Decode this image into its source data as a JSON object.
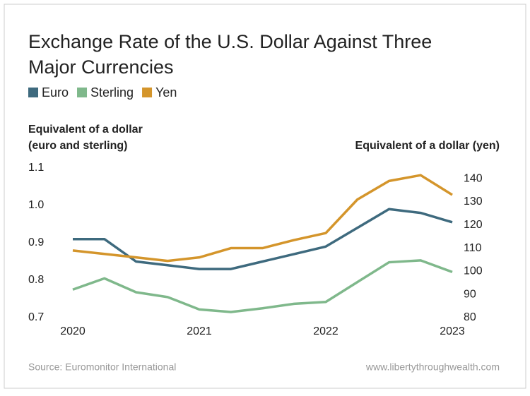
{
  "chart_data": {
    "type": "line",
    "title": [
      "Exchange Rate of the U.S. Dollar Against Three",
      "Major Currencies"
    ],
    "ylabel": [
      "Equivalent of a dollar",
      "(euro and sterling)"
    ],
    "y2label": "Equivalent of a dollar (yen)",
    "source": "Source: Euromonitor International",
    "credit": "www.libertythroughwealth.com",
    "x": [
      2020,
      2020.25,
      2020.5,
      2020.75,
      2021,
      2021.25,
      2021.5,
      2021.75,
      2022,
      2022.25,
      2022.5,
      2022.75,
      2023
    ],
    "xlim": [
      2020,
      2023
    ],
    "xticks": [
      2020,
      2021,
      2022,
      2023
    ],
    "ylim": [
      0.7,
      1.1
    ],
    "yticks": [
      0.7,
      0.8,
      0.9,
      {
        "value": 1,
        "label": "1.0"
      },
      1.1
    ],
    "y2lim": [
      80,
      144.6
    ],
    "y2ticks": [
      80,
      90,
      100,
      110,
      120,
      130,
      140
    ],
    "grid": false,
    "series": [
      {
        "name": "Euro",
        "color": "#3e6a7e",
        "values": [
          0.91,
          0.91,
          0.85,
          0.84,
          0.83,
          0.83,
          0.85,
          0.87,
          0.89,
          0.94,
          0.99,
          0.98,
          0.955
        ]
      },
      {
        "name": "Sterling",
        "color": "#7fb88b",
        "values": [
          0.775,
          0.805,
          0.768,
          0.755,
          0.722,
          0.715,
          0.725,
          0.737,
          0.742,
          0.795,
          0.848,
          0.853,
          0.822
        ]
      },
      {
        "name": "Yen",
        "color": "#d4952b",
        "axis": "y2",
        "values": [
          109,
          107.5,
          106,
          104.5,
          106,
          110,
          110,
          113.5,
          116.5,
          131,
          139,
          141.5,
          133
        ]
      }
    ]
  }
}
